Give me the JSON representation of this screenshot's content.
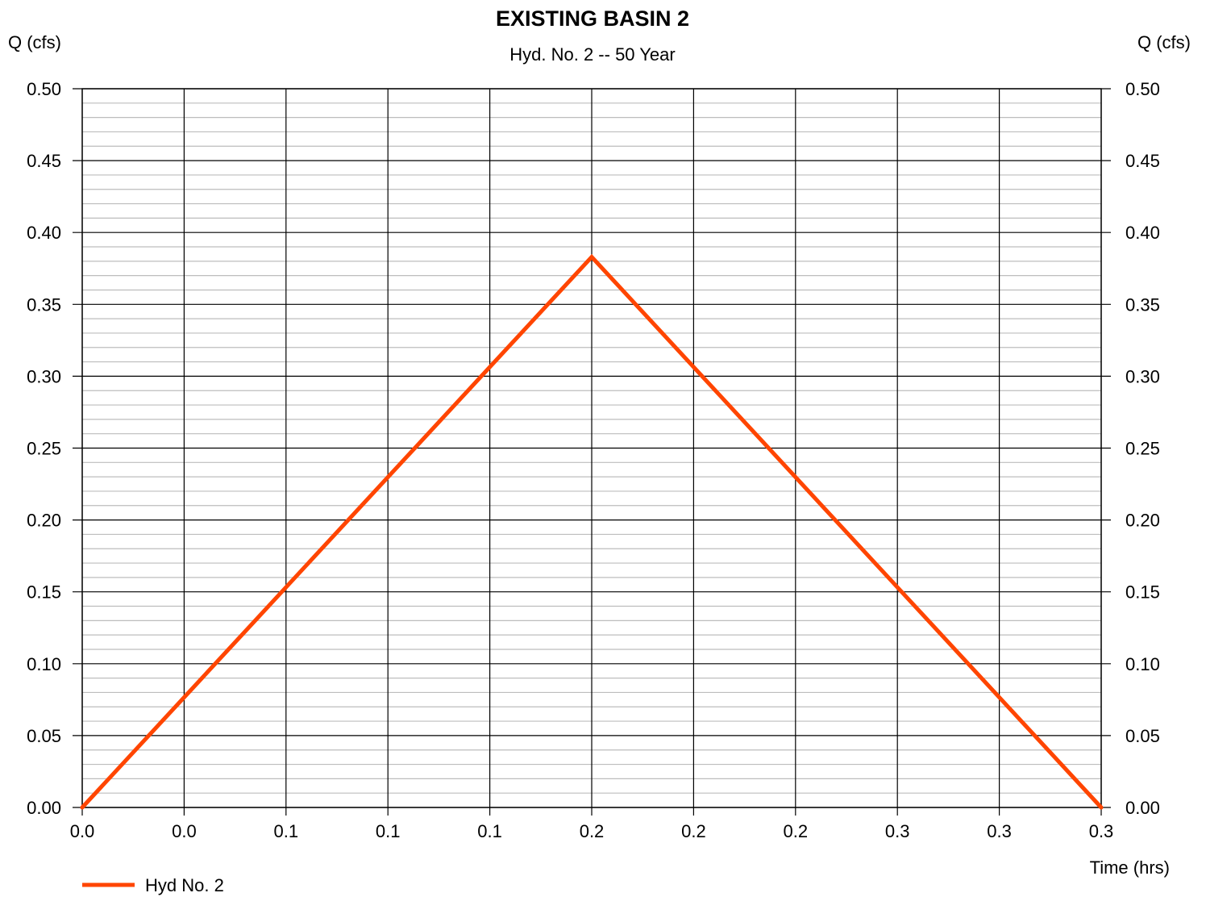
{
  "chart_data": {
    "type": "line",
    "title": "EXISTING BASIN 2",
    "subtitle": "Hyd. No. 2 -- 50 Year",
    "ylabel_left": "Q (cfs)",
    "ylabel_right": "Q (cfs)",
    "xlabel": "Time (hrs)",
    "x_tick_labels": [
      "0.0",
      "0.0",
      "0.1",
      "0.1",
      "0.1",
      "0.2",
      "0.2",
      "0.2",
      "0.3",
      "0.3",
      "0.3"
    ],
    "y_tick_labels": [
      "0.00",
      "0.05",
      "0.10",
      "0.15",
      "0.20",
      "0.25",
      "0.30",
      "0.35",
      "0.40",
      "0.45",
      "0.50"
    ],
    "xlim": [
      0,
      0.3
    ],
    "ylim": [
      0,
      0.5
    ],
    "y_major_step": 0.05,
    "y_minor_step": 0.01,
    "grid": true,
    "legend_position": "bottom-left",
    "series": [
      {
        "name": "Hyd No. 2",
        "color": "#ff4500",
        "x": [
          0.0,
          0.15,
          0.3
        ],
        "y": [
          0.0,
          0.383,
          0.0
        ]
      }
    ]
  }
}
